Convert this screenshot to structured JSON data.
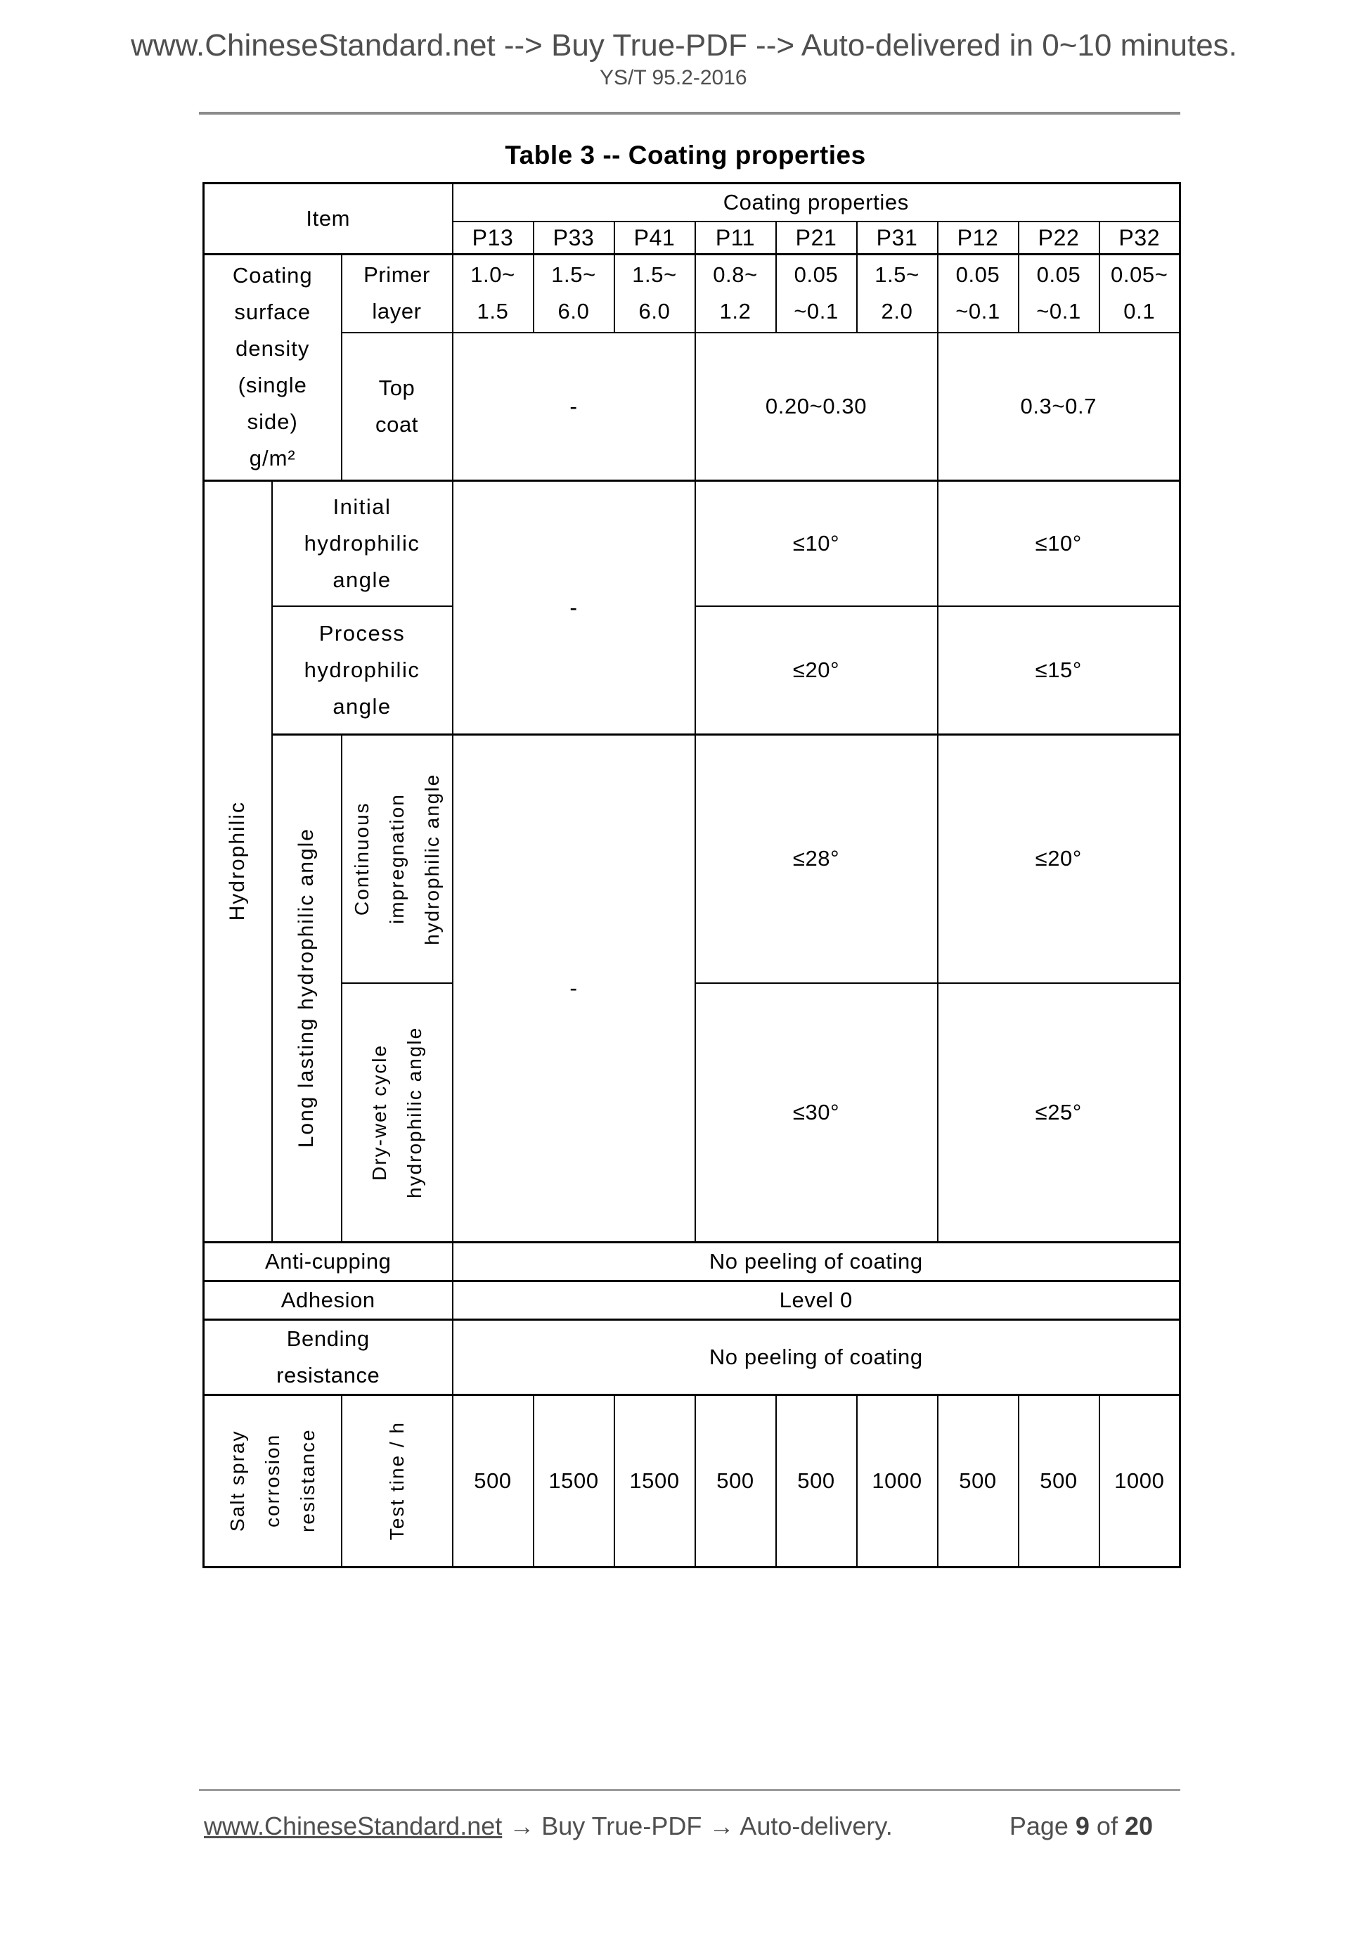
{
  "header": {
    "banner": "www.ChineseStandard.net --> Buy True-PDF --> Auto-delivered in 0~10 minutes.",
    "standard_code": "YS/T 95.2-2016"
  },
  "table": {
    "title": "Table 3 -- Coating properties",
    "item_header": "Item",
    "group_header": "Coating properties",
    "columns": [
      "P13",
      "P33",
      "P41",
      "P11",
      "P21",
      "P31",
      "P12",
      "P22",
      "P32"
    ],
    "coating_density": {
      "label_lines": [
        "Coating",
        "surface",
        "density",
        "(single",
        "side)",
        "g/m²"
      ],
      "primer": {
        "label_lines": [
          "Primer",
          "layer"
        ],
        "values": [
          [
            "1.0~",
            "1.5"
          ],
          [
            "1.5~",
            "6.0"
          ],
          [
            "1.5~",
            "6.0"
          ],
          [
            "0.8~",
            "1.2"
          ],
          [
            "0.05",
            "~0.1"
          ],
          [
            "1.5~",
            "2.0"
          ],
          [
            "0.05",
            "~0.1"
          ],
          [
            "0.05",
            "~0.1"
          ],
          [
            "0.05~",
            "0.1"
          ]
        ]
      },
      "top_coat": {
        "label_lines": [
          "Top",
          "coat"
        ],
        "values": [
          "-",
          "0.20~0.30",
          "0.3~0.7"
        ]
      }
    },
    "hydrophilic": {
      "label": "Hydrophilic",
      "initial": {
        "label_lines": [
          "Initial",
          "hydrophilic",
          "angle"
        ],
        "dash": "-",
        "values": [
          "≤10°",
          "≤10°"
        ]
      },
      "process": {
        "label_lines": [
          "Process",
          "hydrophilic",
          "angle"
        ],
        "values": [
          "≤20°",
          "≤15°"
        ]
      },
      "long_lasting": {
        "label": "Long lasting hydrophilic angle",
        "continuous": {
          "label": "Continuous impregnation hydrophilic angle",
          "dash": "-",
          "values": [
            "≤28°",
            "≤20°"
          ]
        },
        "dry_wet": {
          "label": "Dry-wet cycle hydrophilic angle",
          "values": [
            "≤30°",
            "≤25°"
          ]
        }
      }
    },
    "anti_cupping": {
      "label": "Anti-cupping",
      "value": "No peeling of coating"
    },
    "adhesion": {
      "label": "Adhesion",
      "value": "Level 0"
    },
    "bending": {
      "label_lines": [
        "Bending",
        "resistance"
      ],
      "value": "No peeling of coating"
    },
    "salt_spray": {
      "label": "Salt spray corrosion resistance",
      "sub_label": "Test tine / h",
      "values": [
        "500",
        "1500",
        "1500",
        "500",
        "500",
        "1000",
        "500",
        "500",
        "1000"
      ]
    }
  },
  "footer": {
    "link": "www.ChineseStandard.net",
    "tail": " → Buy True-PDF → Auto-delivery.",
    "page_label": "Page",
    "page_number": "9",
    "of_label": "of",
    "page_total": "20"
  }
}
